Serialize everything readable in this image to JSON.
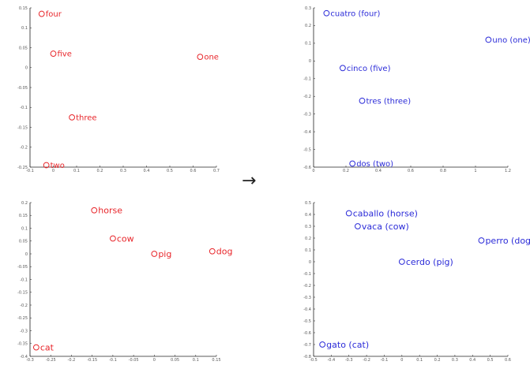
{
  "arrow": "→",
  "chart_data": [
    {
      "type": "scatter",
      "title": "",
      "xlabel": "",
      "ylabel": "",
      "xlim": [
        -0.1,
        0.7
      ],
      "ylim": [
        -0.25,
        0.15
      ],
      "xticks": [
        -0.1,
        0,
        0.1,
        0.2,
        0.3,
        0.4,
        0.5,
        0.6,
        0.7
      ],
      "xtick_labels": [
        "-0.1",
        "0",
        "0.1",
        "0.2",
        "0.3",
        "0.4",
        "0.5",
        "0.6",
        "0.7"
      ],
      "yticks": [
        0.15,
        0.1,
        0.05,
        0,
        -0.05,
        -0.1,
        -0.15,
        -0.2,
        -0.25
      ],
      "ytick_labels": [
        "0.15",
        "0.1",
        "0.05",
        "0",
        "-0.05",
        "-0.1",
        "-0.15",
        "-0.2",
        "-0.25"
      ],
      "color": "#e8262b",
      "grid": false,
      "points": [
        {
          "label": "four",
          "x": -0.05,
          "y": 0.135
        },
        {
          "label": "five",
          "x": 0.0,
          "y": 0.035
        },
        {
          "label": "one",
          "x": 0.63,
          "y": 0.027
        },
        {
          "label": "three",
          "x": 0.08,
          "y": -0.125
        },
        {
          "label": "two",
          "x": -0.03,
          "y": -0.245
        }
      ]
    },
    {
      "type": "scatter",
      "title": "",
      "xlabel": "",
      "ylabel": "",
      "xlim": [
        0,
        1.2
      ],
      "ylim": [
        -0.6,
        0.3
      ],
      "xticks": [
        0,
        0.2,
        0.4,
        0.6,
        0.8,
        1,
        1.2
      ],
      "xtick_labels": [
        "0",
        "0.2",
        "0.4",
        "0.6",
        "0.8",
        "1",
        "1.2"
      ],
      "yticks": [
        0.3,
        0.2,
        0.1,
        0,
        -0.1,
        -0.2,
        -0.3,
        -0.4,
        -0.5,
        -0.6
      ],
      "ytick_labels": [
        "0.3",
        "0.2",
        "0.1",
        "0",
        "-0.1",
        "-0.2",
        "-0.3",
        "-0.4",
        "-0.5",
        "-0.6"
      ],
      "color": "#2b2bd8",
      "grid": false,
      "points": [
        {
          "label": "cuatro (four)",
          "x": 0.08,
          "y": 0.27
        },
        {
          "label": "uno (one)",
          "x": 1.08,
          "y": 0.12
        },
        {
          "label": "cinco (five)",
          "x": 0.18,
          "y": -0.04
        },
        {
          "label": "tres (three)",
          "x": 0.3,
          "y": -0.225
        },
        {
          "label": "dos (two)",
          "x": 0.24,
          "y": -0.58
        }
      ]
    },
    {
      "type": "scatter",
      "title": "",
      "xlabel": "",
      "ylabel": "",
      "xlim": [
        -0.3,
        0.15
      ],
      "ylim": [
        -0.4,
        0.2
      ],
      "xticks": [
        -0.3,
        -0.25,
        -0.2,
        -0.15,
        -0.1,
        -0.05,
        0,
        0.05,
        0.1,
        0.15
      ],
      "xtick_labels": [
        "-0.3",
        "-0.25",
        "-0.2",
        "-0.15",
        "-0.1",
        "-0.05",
        "0",
        "0.05",
        "0.1",
        "0.15"
      ],
      "yticks": [
        0.2,
        0.15,
        0.1,
        0.05,
        0,
        -0.05,
        -0.1,
        -0.15,
        -0.2,
        -0.25,
        -0.3,
        -0.35,
        -0.4
      ],
      "ytick_labels": [
        "0.2",
        "0.15",
        "0.1",
        "0.05",
        "0",
        "-0.05",
        "-0.1",
        "-0.15",
        "-0.2",
        "-0.25",
        "-0.3",
        "-0.35",
        "-0.4"
      ],
      "color": "#e8262b",
      "grid": false,
      "points": [
        {
          "label": "horse",
          "x": -0.145,
          "y": 0.17
        },
        {
          "label": "cow",
          "x": -0.1,
          "y": 0.06
        },
        {
          "label": "pig",
          "x": 0.0,
          "y": 0.0
        },
        {
          "label": "dog",
          "x": 0.14,
          "y": 0.01
        },
        {
          "label": "cat",
          "x": -0.285,
          "y": -0.365
        }
      ]
    },
    {
      "type": "scatter",
      "title": "",
      "xlabel": "",
      "ylabel": "",
      "xlim": [
        -0.5,
        0.6
      ],
      "ylim": [
        -0.8,
        0.5
      ],
      "xticks": [
        -0.5,
        -0.4,
        -0.3,
        -0.2,
        -0.1,
        0,
        0.1,
        0.2,
        0.3,
        0.4,
        0.5,
        0.6
      ],
      "xtick_labels": [
        "-0.5",
        "-0.4",
        "-0.3",
        "-0.2",
        "-0.1",
        "0",
        "0.1",
        "0.2",
        "0.3",
        "0.4",
        "0.5",
        "0.6"
      ],
      "yticks": [
        0.5,
        0.4,
        0.3,
        0.2,
        0.1,
        0,
        -0.1,
        -0.2,
        -0.3,
        -0.4,
        -0.5,
        -0.6,
        -0.7,
        -0.8
      ],
      "ytick_labels": [
        "0.5",
        "0.4",
        "0.3",
        "0.2",
        "0.1",
        "0",
        "-0.1",
        "-0.2",
        "-0.3",
        "-0.4",
        "-0.5",
        "-0.6",
        "-0.7",
        "-0.8"
      ],
      "color": "#2b2bd8",
      "grid": false,
      "points": [
        {
          "label": "caballo (horse)",
          "x": -0.3,
          "y": 0.41
        },
        {
          "label": "vaca (cow)",
          "x": -0.25,
          "y": 0.3
        },
        {
          "label": "perro (dog)",
          "x": 0.45,
          "y": 0.18
        },
        {
          "label": "cerdo (pig)",
          "x": 0.0,
          "y": 0.0
        },
        {
          "label": "gato (cat)",
          "x": -0.45,
          "y": -0.7
        }
      ]
    }
  ]
}
